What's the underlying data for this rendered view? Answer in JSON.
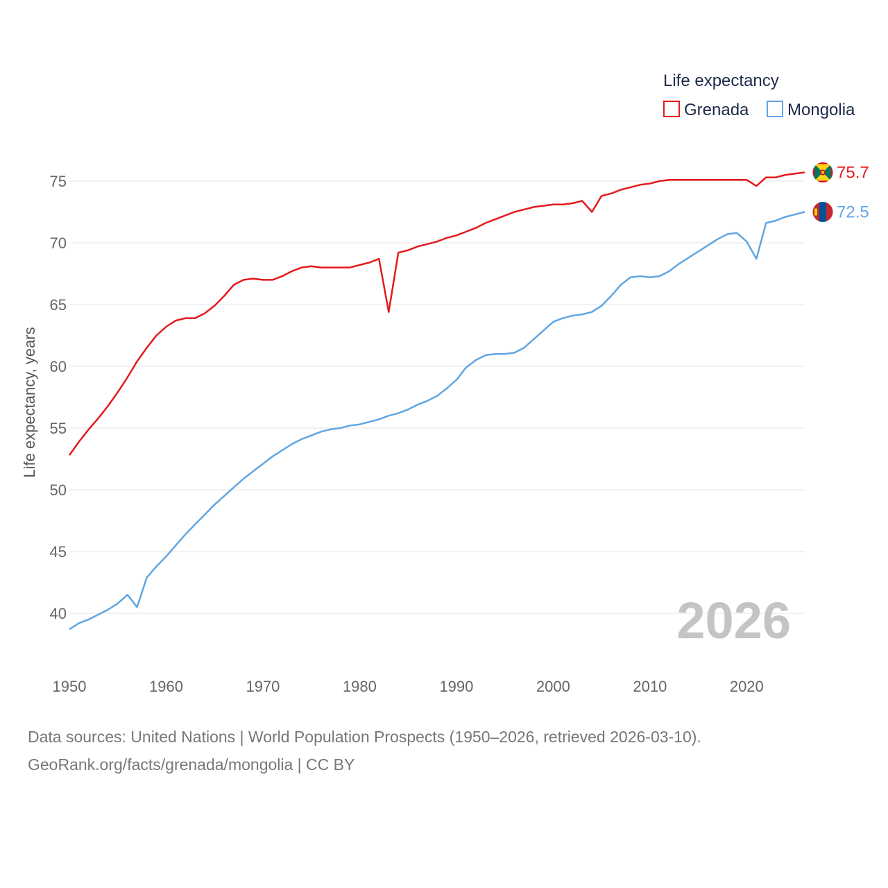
{
  "chart_data": {
    "type": "line",
    "title": "",
    "xlabel": "",
    "ylabel": "Life expectancy, years",
    "xlim": [
      1950,
      2026
    ],
    "ylim": [
      37,
      78
    ],
    "x_ticks": [
      1950,
      1960,
      1970,
      1980,
      1990,
      2000,
      2010,
      2020
    ],
    "y_ticks": [
      40,
      45,
      50,
      55,
      60,
      65,
      70,
      75
    ],
    "grid": true,
    "legend": {
      "title": "Life expectancy",
      "placement": "top-right",
      "entries": [
        "Grenada",
        "Mongolia"
      ]
    },
    "year_label": "2026",
    "x": [
      1950,
      1951,
      1952,
      1953,
      1954,
      1955,
      1956,
      1957,
      1958,
      1959,
      1960,
      1961,
      1962,
      1963,
      1964,
      1965,
      1966,
      1967,
      1968,
      1969,
      1970,
      1971,
      1972,
      1973,
      1974,
      1975,
      1976,
      1977,
      1978,
      1979,
      1980,
      1981,
      1982,
      1983,
      1984,
      1985,
      1986,
      1987,
      1988,
      1989,
      1990,
      1991,
      1992,
      1993,
      1994,
      1995,
      1996,
      1997,
      1998,
      1999,
      2000,
      2001,
      2002,
      2003,
      2004,
      2005,
      2006,
      2007,
      2008,
      2009,
      2010,
      2011,
      2012,
      2013,
      2014,
      2015,
      2016,
      2017,
      2018,
      2019,
      2020,
      2021,
      2022,
      2023,
      2024,
      2025,
      2026
    ],
    "series": [
      {
        "name": "Grenada",
        "color": "#e41a1c",
        "end_value_label": "75.7",
        "values": [
          52.8,
          53.9,
          54.9,
          55.8,
          56.8,
          57.9,
          59.1,
          60.4,
          61.5,
          62.5,
          63.2,
          63.7,
          63.9,
          63.9,
          64.3,
          64.9,
          65.7,
          66.6,
          67.0,
          67.1,
          67.0,
          67.0,
          67.3,
          67.7,
          68.0,
          68.1,
          68.0,
          68.0,
          68.0,
          68.0,
          68.2,
          68.4,
          68.7,
          64.4,
          69.2,
          69.4,
          69.7,
          69.9,
          70.1,
          70.4,
          70.6,
          70.9,
          71.2,
          71.6,
          71.9,
          72.2,
          72.5,
          72.7,
          72.9,
          73.0,
          73.1,
          73.1,
          73.2,
          73.4,
          72.5,
          73.8,
          74.0,
          74.3,
          74.5,
          74.7,
          74.8,
          75.0,
          75.1,
          75.1,
          75.1,
          75.1,
          75.1,
          75.1,
          75.1,
          75.1,
          75.1,
          74.6,
          75.3,
          75.3,
          75.5,
          75.6,
          75.7
        ]
      },
      {
        "name": "Mongolia",
        "color": "#5fa6e2",
        "end_value_label": "72.5",
        "values": [
          38.7,
          39.2,
          39.5,
          39.9,
          40.3,
          40.8,
          41.5,
          40.5,
          42.9,
          43.8,
          44.6,
          45.5,
          46.4,
          47.2,
          48.0,
          48.8,
          49.5,
          50.2,
          50.9,
          51.5,
          52.1,
          52.7,
          53.2,
          53.7,
          54.1,
          54.4,
          54.7,
          54.9,
          55.0,
          55.2,
          55.3,
          55.5,
          55.7,
          56.0,
          56.2,
          56.5,
          56.9,
          57.2,
          57.6,
          58.2,
          58.9,
          59.9,
          60.5,
          60.9,
          61.0,
          61.0,
          61.1,
          61.5,
          62.2,
          62.9,
          63.6,
          63.9,
          64.1,
          64.2,
          64.4,
          64.9,
          65.7,
          66.6,
          67.2,
          67.3,
          67.2,
          67.3,
          67.7,
          68.3,
          68.8,
          69.3,
          69.8,
          70.3,
          70.7,
          70.8,
          70.1,
          68.7,
          71.6,
          71.8,
          72.1,
          72.3,
          72.5
        ]
      }
    ]
  },
  "footer": {
    "line1": "Data sources: United Nations | World Population Prospects (1950–2026, retrieved 2026-03-10).",
    "line2": "GeoRank.org/facts/grenada/mongolia | CC BY"
  },
  "flags": {
    "grenada": {
      "red": "#ce1126",
      "yellow": "#fcd116",
      "green": "#007a5e"
    },
    "mongolia": {
      "red": "#c4272f",
      "blue": "#015197",
      "yellow": "#f9cf02"
    }
  }
}
